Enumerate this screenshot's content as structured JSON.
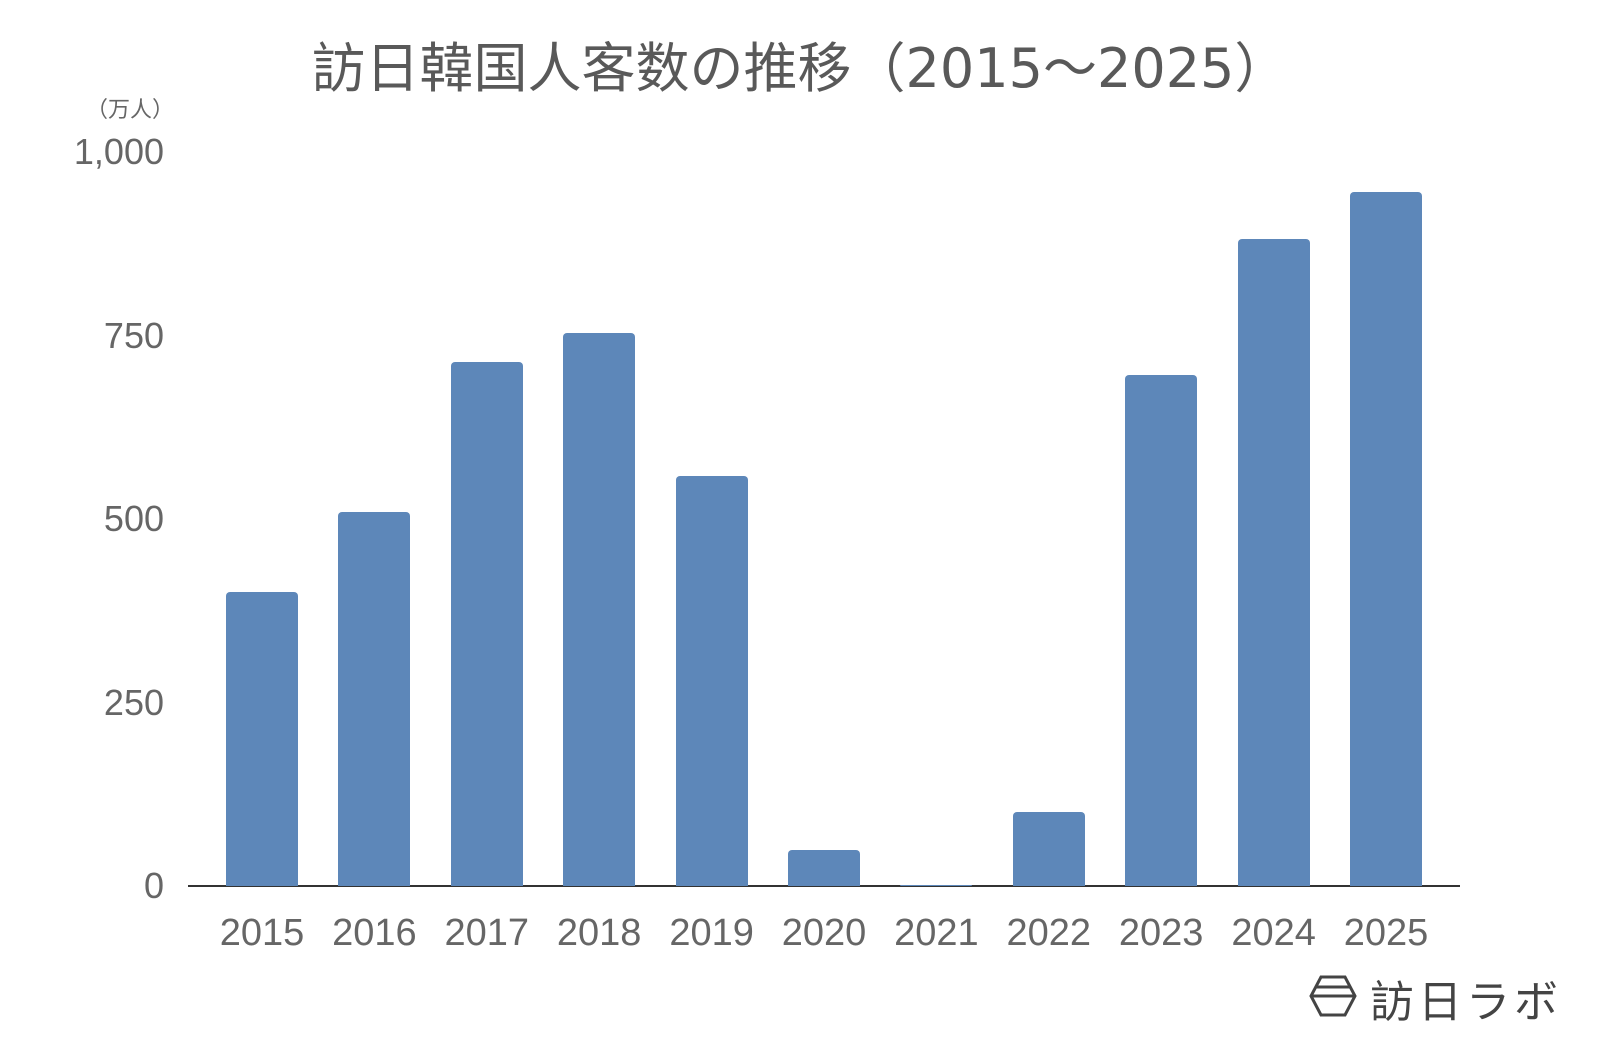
{
  "chart_data": {
    "type": "bar",
    "title": "訪日韓国人客数の推移（2015〜2025）",
    "xlabel": "",
    "ylabel": "（万人）",
    "categories": [
      "2015",
      "2016",
      "2017",
      "2018",
      "2019",
      "2020",
      "2021",
      "2022",
      "2023",
      "2024",
      "2025"
    ],
    "values": [
      400,
      509,
      714,
      754,
      558,
      49,
      2,
      101,
      696,
      882,
      945
    ],
    "ylim": [
      0,
      1000
    ],
    "yticks": [
      "0",
      "250",
      "500",
      "750",
      "1,000"
    ],
    "grid": false,
    "legend": null,
    "bar_color": "#5d87b9"
  },
  "header": {
    "title": "訪日韓国人客数の推移（2015〜2025）",
    "unit": "（万人）"
  },
  "axis": {
    "y_ticks": [
      {
        "label": "1,000",
        "value": 1000
      },
      {
        "label": "750",
        "value": 750
      },
      {
        "label": "500",
        "value": 500
      },
      {
        "label": "250",
        "value": 250
      },
      {
        "label": "0",
        "value": 0
      }
    ]
  },
  "branding": {
    "logo_text": "訪日ラボ",
    "logo_icon": "hexagon-logo-icon"
  }
}
